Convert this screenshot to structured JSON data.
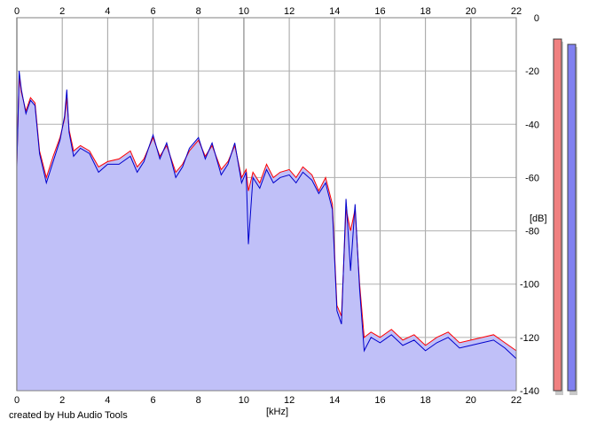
{
  "chart_data": {
    "type": "area",
    "xlabel": "[kHz]",
    "ylabel": "[dB]",
    "xlim": [
      0,
      22
    ],
    "ylim": [
      -140,
      0
    ],
    "x_ticks": [
      0,
      2,
      4,
      6,
      8,
      10,
      12,
      14,
      16,
      18,
      20,
      22
    ],
    "y_ticks": [
      0,
      -20,
      -40,
      -60,
      -80,
      -100,
      -120,
      -140
    ],
    "grid": true,
    "series": [
      {
        "color": "#ff0000",
        "x": [
          0,
          0.1,
          0.2,
          0.4,
          0.6,
          0.8,
          1.0,
          1.3,
          1.6,
          1.9,
          2.1,
          2.2,
          2.3,
          2.5,
          2.8,
          3.2,
          3.6,
          4.0,
          4.5,
          5.0,
          5.3,
          5.6,
          6.0,
          6.3,
          6.6,
          7.0,
          7.3,
          7.6,
          8.0,
          8.3,
          8.6,
          9.0,
          9.3,
          9.6,
          9.9,
          10.1,
          10.2,
          10.4,
          10.7,
          11.0,
          11.3,
          11.6,
          12.0,
          12.3,
          12.6,
          13.0,
          13.3,
          13.6,
          13.9,
          14.1,
          14.3,
          14.5,
          14.7,
          14.9,
          15.1,
          15.3,
          15.6,
          16.0,
          16.5,
          17.0,
          17.5,
          18.0,
          18.5,
          19.0,
          19.5,
          20.0,
          20.5,
          21.0,
          21.5,
          22.0
        ],
        "values": [
          -55,
          -22,
          -28,
          -35,
          -30,
          -32,
          -50,
          -60,
          -52,
          -45,
          -38,
          -30,
          -42,
          -50,
          -48,
          -50,
          -56,
          -54,
          -53,
          -50,
          -56,
          -53,
          -45,
          -52,
          -48,
          -58,
          -55,
          -50,
          -46,
          -52,
          -48,
          -57,
          -54,
          -48,
          -60,
          -57,
          -65,
          -58,
          -62,
          -55,
          -60,
          -58,
          -57,
          -60,
          -56,
          -59,
          -65,
          -60,
          -70,
          -108,
          -112,
          -72,
          -80,
          -72,
          -100,
          -120,
          -118,
          -120,
          -117,
          -121,
          -119,
          -123,
          -120,
          -118,
          -122,
          -121,
          -120,
          -119,
          -122,
          -125
        ]
      },
      {
        "color": "#0000cc",
        "x": [
          0,
          0.1,
          0.2,
          0.4,
          0.6,
          0.8,
          1.0,
          1.3,
          1.6,
          1.9,
          2.1,
          2.2,
          2.3,
          2.5,
          2.8,
          3.2,
          3.6,
          4.0,
          4.5,
          5.0,
          5.3,
          5.6,
          6.0,
          6.3,
          6.6,
          7.0,
          7.3,
          7.6,
          8.0,
          8.3,
          8.6,
          9.0,
          9.3,
          9.6,
          9.9,
          10.1,
          10.2,
          10.4,
          10.7,
          11.0,
          11.3,
          11.6,
          12.0,
          12.3,
          12.6,
          13.0,
          13.3,
          13.6,
          13.9,
          14.1,
          14.3,
          14.5,
          14.7,
          14.9,
          15.1,
          15.3,
          15.6,
          16.0,
          16.5,
          17.0,
          17.5,
          18.0,
          18.5,
          19.0,
          19.5,
          20.0,
          20.5,
          21.0,
          21.5,
          22.0
        ],
        "values": [
          -56,
          -20,
          -27,
          -36,
          -31,
          -33,
          -51,
          -62,
          -54,
          -46,
          -37,
          -27,
          -43,
          -52,
          -49,
          -51,
          -58,
          -55,
          -55,
          -52,
          -58,
          -54,
          -44,
          -53,
          -47,
          -60,
          -56,
          -49,
          -45,
          -53,
          -47,
          -59,
          -55,
          -47,
          -62,
          -58,
          -85,
          -60,
          -64,
          -57,
          -62,
          -60,
          -59,
          -62,
          -58,
          -61,
          -66,
          -62,
          -72,
          -110,
          -115,
          -68,
          -95,
          -70,
          -102,
          -125,
          -120,
          -122,
          -119,
          -123,
          -121,
          -125,
          -122,
          -120,
          -124,
          -123,
          -122,
          -121,
          -124,
          -128
        ]
      }
    ],
    "level_meters": [
      {
        "color": "#f08080",
        "top_db": -8
      },
      {
        "color": "#8080f0",
        "top_db": -10
      }
    ]
  },
  "credit": "created by Hub Audio Tools"
}
